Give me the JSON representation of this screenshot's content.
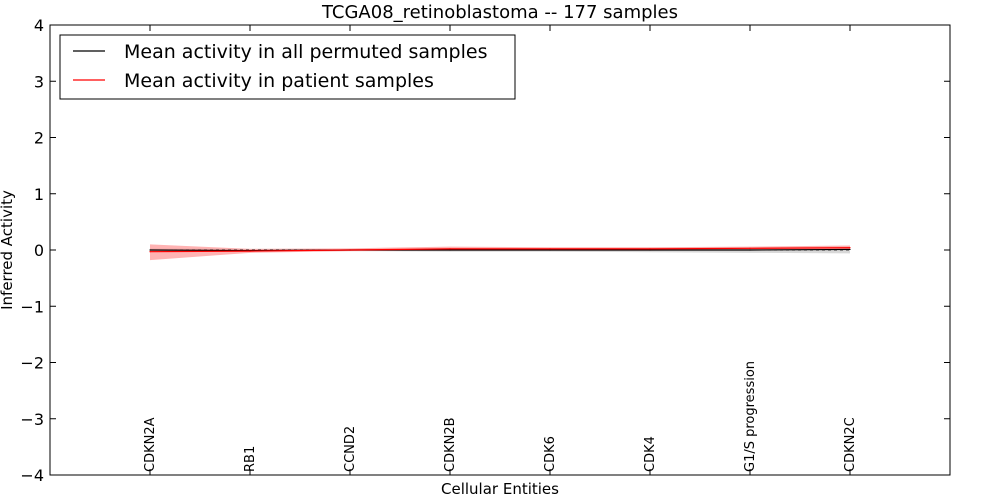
{
  "chart_data": {
    "type": "line",
    "title": "TCGA08_retinoblastoma -- 177 samples",
    "xlabel": "Cellular Entities",
    "ylabel": "Inferred Activity",
    "ylim": [
      -4,
      4
    ],
    "yticks": [
      4,
      3,
      2,
      1,
      0,
      -1,
      -2,
      -3,
      -4
    ],
    "ytick_labels": [
      "4",
      "3",
      "2",
      "1",
      "0",
      "−1",
      "−2",
      "−3",
      "−4"
    ],
    "categories": [
      "CDKN2A",
      "RB1",
      "CCND2",
      "CDKN2B",
      "CDK6",
      "CDK4",
      "G1/S progression",
      "CDKN2C"
    ],
    "legend_position": "top-left",
    "grid": false,
    "series": [
      {
        "name": "Mean activity in all permuted samples",
        "color": "#000000",
        "band_color": "#c8c8c8",
        "values": [
          0.0,
          -0.01,
          0.0,
          0.0,
          0.0,
          0.0,
          0.0,
          0.01
        ],
        "lower": [
          -0.03,
          -0.03,
          -0.02,
          -0.03,
          -0.03,
          -0.04,
          -0.05,
          -0.06
        ],
        "upper": [
          0.03,
          0.02,
          0.02,
          0.03,
          0.03,
          0.04,
          0.05,
          0.06
        ]
      },
      {
        "name": "Mean activity in patient samples",
        "color": "#ff0000",
        "band_color": "#ff9a9a",
        "values": [
          -0.03,
          -0.02,
          0.0,
          0.02,
          0.02,
          0.02,
          0.03,
          0.04
        ],
        "lower": [
          -0.18,
          -0.05,
          -0.02,
          -0.01,
          -0.01,
          -0.01,
          0.0,
          0.0
        ],
        "upper": [
          0.1,
          0.02,
          0.03,
          0.06,
          0.05,
          0.05,
          0.06,
          0.08
        ]
      }
    ]
  }
}
